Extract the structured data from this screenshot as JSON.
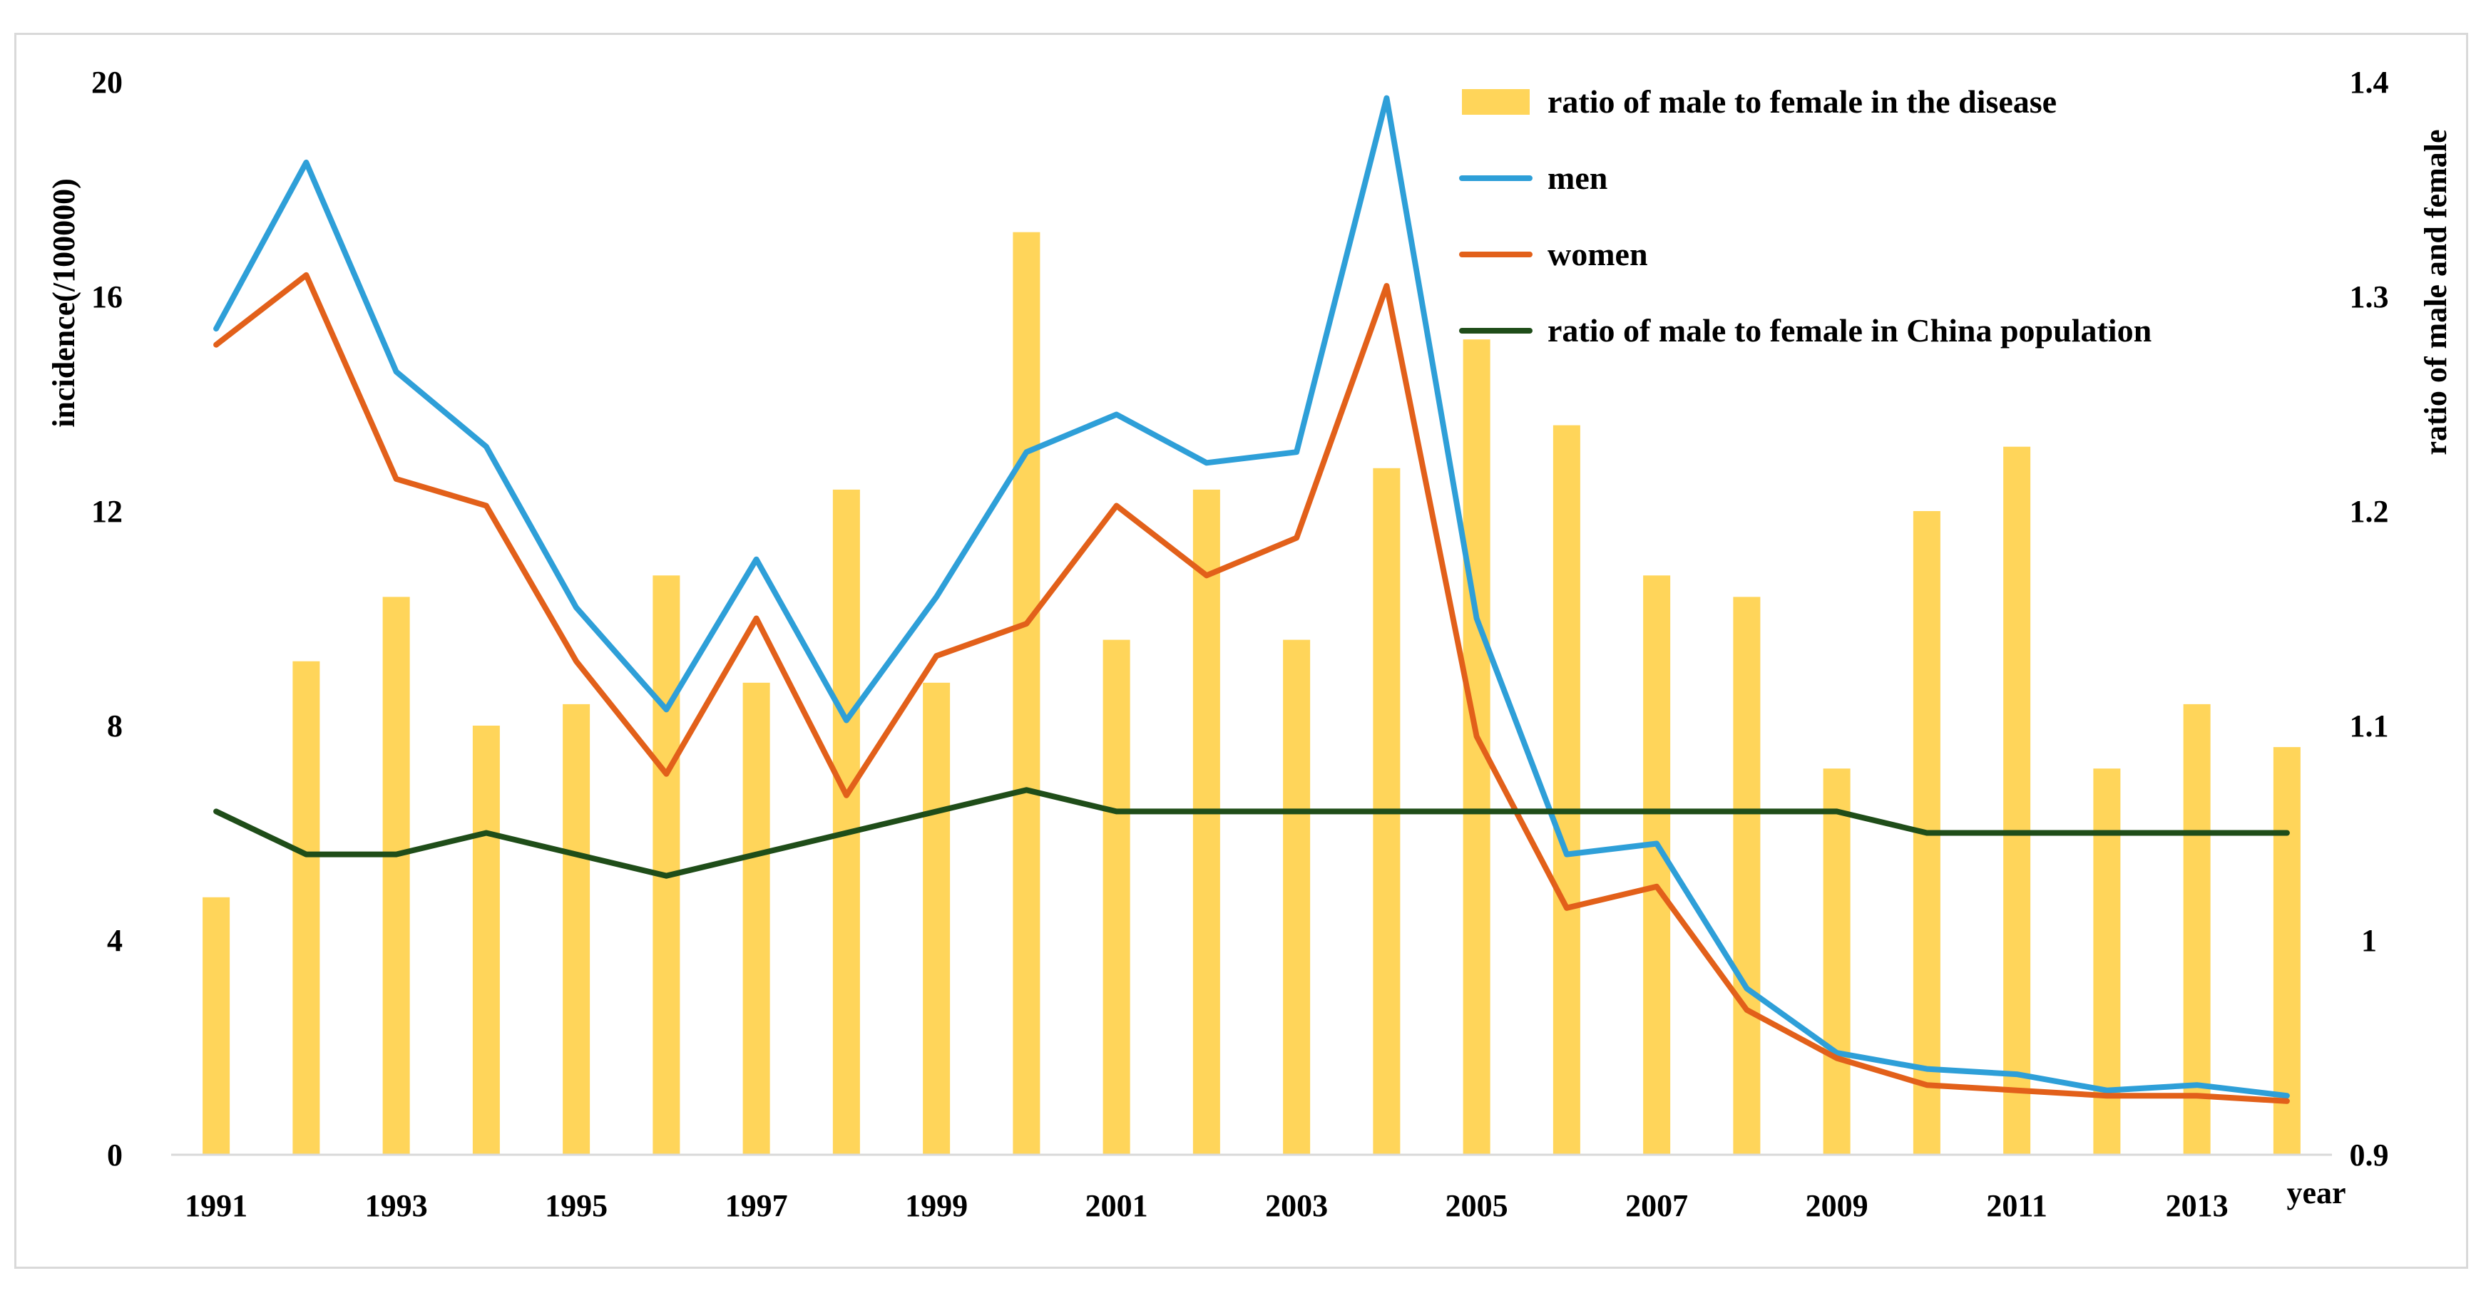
{
  "chart_data": {
    "type": "bar+line",
    "x": [
      1991,
      1992,
      1993,
      1994,
      1995,
      1996,
      1997,
      1998,
      1999,
      2000,
      2001,
      2002,
      2003,
      2004,
      2005,
      2006,
      2007,
      2008,
      2009,
      2010,
      2011,
      2012,
      2013,
      2014
    ],
    "x_tick_labels": [
      "1991",
      "1993",
      "1995",
      "1997",
      "1999",
      "2001",
      "2003",
      "2005",
      "2007",
      "2009",
      "2011",
      "2013"
    ],
    "xlabel": "year",
    "left_axis": {
      "label": "incidence(/100000)",
      "ylim": [
        0,
        20
      ],
      "ticks": [
        "0",
        "4",
        "8",
        "12",
        "16",
        "20"
      ]
    },
    "right_axis": {
      "label": "ratio of male and female",
      "ylim": [
        0.9,
        1.4
      ],
      "ticks": [
        "0.9",
        "1",
        "1.1",
        "1.2",
        "1.3",
        "1.4"
      ]
    },
    "series": [
      {
        "name": "ratio of male to female in the disease",
        "type": "bar",
        "axis": "right",
        "color": "#ffd55a",
        "values": [
          1.02,
          1.13,
          1.16,
          1.1,
          1.11,
          1.17,
          1.12,
          1.21,
          1.12,
          1.33,
          1.14,
          1.21,
          1.14,
          1.22,
          1.28,
          1.24,
          1.17,
          1.16,
          1.08,
          1.2,
          1.23,
          1.08,
          1.11,
          1.09
        ]
      },
      {
        "name": "men",
        "type": "line",
        "axis": "left",
        "color": "#2e9fd8",
        "values": [
          15.4,
          18.5,
          14.6,
          13.2,
          10.2,
          8.3,
          11.1,
          8.1,
          10.4,
          13.1,
          13.8,
          12.9,
          13.1,
          19.7,
          10.0,
          5.6,
          5.8,
          3.1,
          1.9,
          1.6,
          1.5,
          1.2,
          1.3,
          1.1
        ]
      },
      {
        "name": "women",
        "type": "line",
        "axis": "left",
        "color": "#e2601a",
        "values": [
          15.1,
          16.4,
          12.6,
          12.1,
          9.2,
          7.1,
          10.0,
          6.7,
          9.3,
          9.9,
          12.1,
          10.8,
          11.5,
          16.2,
          7.8,
          4.6,
          5.0,
          2.7,
          1.8,
          1.3,
          1.2,
          1.1,
          1.1,
          1.0
        ]
      },
      {
        "name": "ratio of male to female in China population",
        "type": "line",
        "axis": "right",
        "color": "#1f4d19",
        "values": [
          1.06,
          1.04,
          1.04,
          1.05,
          1.04,
          1.03,
          1.04,
          1.05,
          1.06,
          1.07,
          1.06,
          1.06,
          1.06,
          1.06,
          1.06,
          1.06,
          1.06,
          1.06,
          1.06,
          1.05,
          1.05,
          1.05,
          1.05,
          1.05
        ]
      }
    ],
    "legend_position": "top-right"
  }
}
